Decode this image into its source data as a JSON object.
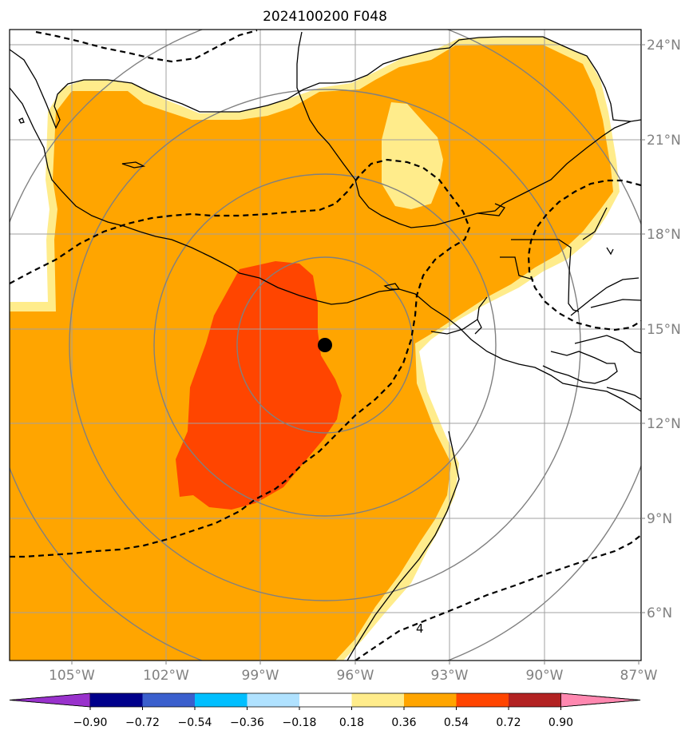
{
  "title": "2024100200 F048",
  "lat_labels": [
    "24°N",
    "21°N",
    "18°N",
    "15°N",
    "12°N",
    "9°N",
    "6°N"
  ],
  "lon_labels": [
    "105°W",
    "102°W",
    "99°W",
    "96°W",
    "93°W",
    "90°W",
    "87°W"
  ],
  "contour_label": "4",
  "storm_center": {
    "lat": 14.6,
    "lon": -97.0
  },
  "colorbar": {
    "ticks": [
      "−0.90",
      "−0.72",
      "−0.54",
      "−0.36",
      "−0.18",
      "0.18",
      "0.36",
      "0.54",
      "0.72",
      "0.90"
    ],
    "colors": [
      "#9932CC",
      "#00008B",
      "#3A5FCD",
      "#00BFFF",
      "#B0E2FF",
      "#FFFFFF",
      "#FFEC8B",
      "#FFA500",
      "#FF4500",
      "#B22222",
      "#FF88B0"
    ]
  },
  "fill_colors": {
    "light": "#FFEC8B",
    "orange": "#FFA500",
    "red": "#FF4500"
  }
}
